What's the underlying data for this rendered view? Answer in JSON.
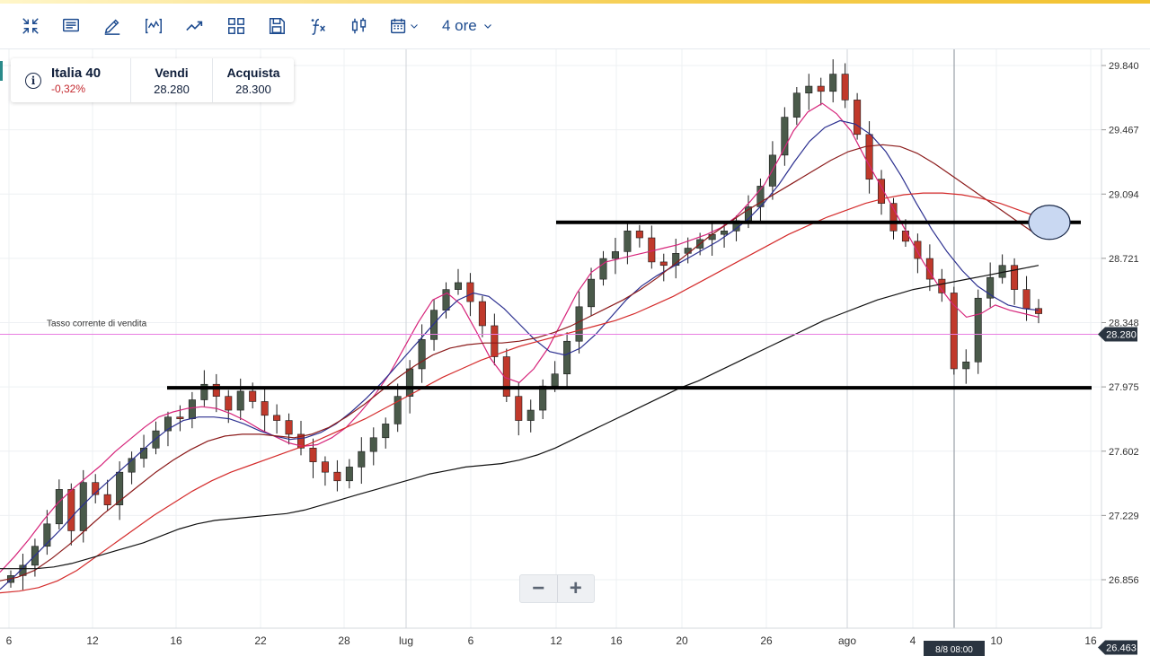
{
  "toolbar": {
    "icons": [
      "collapse-icon",
      "news-icon",
      "draw-icon",
      "indicator-icon",
      "trend-icon",
      "layout-icon",
      "save-icon",
      "function-icon",
      "candle-icon",
      "calendar-icon"
    ],
    "interval_label": "4 ore"
  },
  "quote": {
    "name": "Italia 40",
    "change": "-0,32%",
    "sell_label": "Vendi",
    "sell_value": "28.280",
    "buy_label": "Acquista",
    "buy_value": "28.300"
  },
  "chart_data": {
    "type": "candlestick",
    "title": "",
    "current_rate_label": "Tasso corrente di vendita",
    "current_rate": 28280,
    "current_rate_text": "28.280",
    "low_marker": 26463,
    "low_marker_text": "26.463",
    "crosshair_label": "8/8 08:00",
    "y_ticks": [
      "29.840",
      "29.467",
      "29.094",
      "28.721",
      "28.348",
      "27.975",
      "27.602",
      "27.229",
      "26.856"
    ],
    "y_tick_values": [
      29840,
      29467,
      29094,
      28721,
      28348,
      27975,
      27602,
      27229,
      26856
    ],
    "x_ticks": [
      "6",
      "12",
      "16",
      "22",
      "28",
      "lug",
      "6",
      "12",
      "16",
      "20",
      "26",
      "ago",
      "4",
      "10",
      "16"
    ],
    "ylim": [
      26400,
      29930
    ],
    "horizontal_levels": [
      28930,
      27970
    ],
    "colors": {
      "up": "#ffffff",
      "down": "#c0392b",
      "wick": "#1b1b1b",
      "ma_fast": "#d6247a",
      "ma_mid": "#2b2f8f",
      "ma_slow": "#8b1a1a",
      "ma_red": "#d42b2b",
      "ma_long": "#111111",
      "current": "#e87ee0"
    },
    "candle_series": "approximate daily 4-hour candles from early June to mid August",
    "closes": [
      26880,
      26940,
      27050,
      27180,
      27380,
      27140,
      27420,
      27350,
      27290,
      27480,
      27560,
      27620,
      27720,
      27800,
      27790,
      27900,
      27990,
      27920,
      27840,
      27950,
      27890,
      27810,
      27780,
      27700,
      27620,
      27540,
      27480,
      27430,
      27510,
      27600,
      27680,
      27760,
      27920,
      28080,
      28250,
      28420,
      28540,
      28580,
      28470,
      28330,
      28150,
      27920,
      27780,
      27840,
      27980,
      28050,
      28240,
      28440,
      28600,
      28720,
      28760,
      28880,
      28840,
      28700,
      28680,
      28750,
      28780,
      28830,
      28860,
      28880,
      28940,
      29020,
      29140,
      29320,
      29540,
      29680,
      29720,
      29690,
      29790,
      29640,
      29440,
      29180,
      29040,
      28880,
      28820,
      28720,
      28600,
      28520,
      28080,
      28120,
      28490,
      28610,
      28680,
      28540,
      28430,
      28400
    ],
    "moving_averages": [
      {
        "name": "MA fast",
        "values": [
          26900,
          26990,
          27090,
          27200,
          27300,
          27380,
          27450,
          27520,
          27600,
          27670,
          27740,
          27800,
          27830,
          27850,
          27860,
          27850,
          27820,
          27780,
          27730,
          27690,
          27650,
          27630,
          27640,
          27680,
          27740,
          27830,
          27930,
          28050,
          28200,
          28350,
          28480,
          28520,
          28450,
          28300,
          28140,
          28030,
          28000,
          28080,
          28200,
          28360,
          28520,
          28640,
          28700,
          28720,
          28740,
          28760,
          28780,
          28800,
          28830,
          28860,
          28900,
          28960,
          29050,
          29150,
          29300,
          29460,
          29570,
          29620,
          29560,
          29460,
          29300,
          29150,
          29000,
          28850,
          28700,
          28570,
          28460,
          28380,
          28400,
          28450,
          28420,
          28400,
          28380
        ]
      },
      {
        "name": "MA mid",
        "values": [
          26800,
          26880,
          26970,
          27060,
          27150,
          27250,
          27340,
          27420,
          27500,
          27580,
          27660,
          27730,
          27780,
          27800,
          27800,
          27790,
          27760,
          27720,
          27690,
          27670,
          27680,
          27710,
          27760,
          27830,
          27910,
          28000,
          28100,
          28200,
          28300,
          28400,
          28480,
          28520,
          28500,
          28430,
          28340,
          28250,
          28180,
          28160,
          28200,
          28280,
          28380,
          28480,
          28560,
          28620,
          28670,
          28720,
          28770,
          28820,
          28880,
          28950,
          29040,
          29150,
          29280,
          29400,
          29480,
          29520,
          29500,
          29440,
          29340,
          29200,
          29040,
          28890,
          28760,
          28650,
          28560,
          28500,
          28450,
          28430,
          28420
        ]
      },
      {
        "name": "MA slow",
        "values": [
          26850,
          26870,
          26910,
          26980,
          27060,
          27150,
          27240,
          27320,
          27400,
          27480,
          27550,
          27610,
          27660,
          27690,
          27700,
          27700,
          27690,
          27680,
          27700,
          27740,
          27800,
          27870,
          27950,
          28030,
          28100,
          28160,
          28200,
          28220,
          28230,
          28230,
          28240,
          28260,
          28290,
          28330,
          28380,
          28430,
          28480,
          28540,
          28610,
          28690,
          28770,
          28850,
          28920,
          28990,
          29050,
          29110,
          29170,
          29230,
          29290,
          29340,
          29370,
          29380,
          29370,
          29330,
          29270,
          29200,
          29130,
          29060,
          28990,
          28920,
          28850
        ]
      },
      {
        "name": "MA red",
        "values": [
          26780,
          26790,
          26810,
          26850,
          26910,
          26990,
          27070,
          27150,
          27230,
          27300,
          27370,
          27430,
          27480,
          27520,
          27560,
          27600,
          27640,
          27690,
          27740,
          27790,
          27850,
          27910,
          27970,
          28030,
          28080,
          28130,
          28170,
          28210,
          28240,
          28270,
          28300,
          28330,
          28360,
          28400,
          28450,
          28500,
          28560,
          28620,
          28680,
          28740,
          28800,
          28860,
          28910,
          28960,
          29000,
          29040,
          29070,
          29090,
          29100,
          29100,
          29090,
          29070,
          29040,
          29000,
          28960
        ]
      },
      {
        "name": "MA long",
        "values": [
          26920,
          26920,
          26920,
          26930,
          26950,
          26980,
          27010,
          27040,
          27070,
          27110,
          27150,
          27180,
          27200,
          27210,
          27220,
          27230,
          27240,
          27260,
          27290,
          27320,
          27350,
          27380,
          27410,
          27440,
          27470,
          27490,
          27510,
          27520,
          27530,
          27550,
          27580,
          27620,
          27670,
          27720,
          27770,
          27820,
          27870,
          27920,
          27970,
          28010,
          28060,
          28110,
          28160,
          28210,
          28260,
          28310,
          28360,
          28400,
          28440,
          28480,
          28510,
          28540,
          28560,
          28580,
          28600,
          28620,
          28640,
          28660,
          28680
        ]
      }
    ]
  }
}
